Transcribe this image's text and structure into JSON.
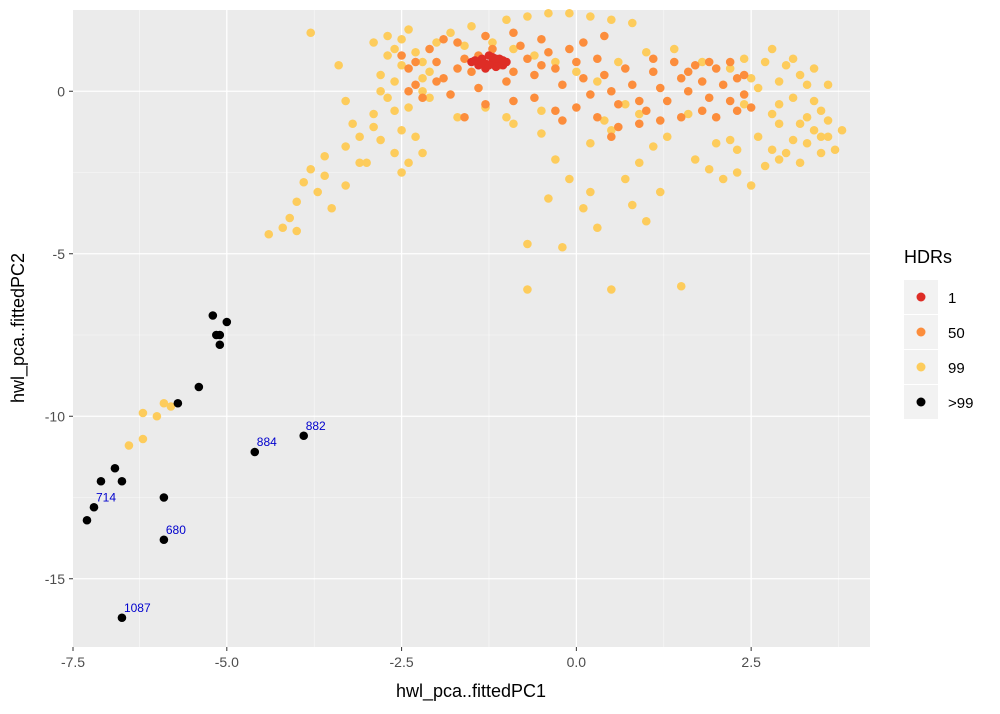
{
  "chart_data": {
    "type": "scatter",
    "title": "",
    "xlabel": "hwl_pca..fittedPC1",
    "ylabel": "hwl_pca..fittedPC2",
    "xlim": [
      -7.2,
      4.2
    ],
    "ylim": [
      -17.1,
      2.5
    ],
    "xticks": [
      -7.5,
      -5.0,
      -2.5,
      0.0,
      2.5
    ],
    "xtick_labels": [
      "-7.5",
      "-5.0",
      "-2.5",
      "0.0",
      "2.5"
    ],
    "yticks": [
      0,
      -5,
      -10,
      -15
    ],
    "ytick_labels": [
      "0",
      "-5",
      "-10",
      "-15"
    ],
    "grid": true,
    "legend": {
      "title": "HDRs",
      "position": "right",
      "entries": [
        {
          "label": "1",
          "color": "#de2d26"
        },
        {
          "label": "50",
          "color": "#fc8d3c"
        },
        {
          "label": "99",
          "color": "#fdcc5c"
        },
        {
          "label": ">99",
          "color": "#000000"
        }
      ]
    },
    "series": [
      {
        "name": "99",
        "color": "#fdcc5c",
        "points": [
          [
            -3.8,
            1.8
          ],
          [
            -3.4,
            0.8
          ],
          [
            -3.3,
            -0.3
          ],
          [
            -3.2,
            -1.0
          ],
          [
            -3.1,
            -1.4
          ],
          [
            -3.3,
            -1.7
          ],
          [
            -3.6,
            -2.0
          ],
          [
            -3.8,
            -2.4
          ],
          [
            -3.9,
            -2.8
          ],
          [
            -4.0,
            -3.4
          ],
          [
            -4.1,
            -3.9
          ],
          [
            -4.2,
            -4.2
          ],
          [
            -4.4,
            -4.4
          ],
          [
            -4.0,
            -4.3
          ],
          [
            -3.5,
            -3.6
          ],
          [
            -3.0,
            -2.2
          ],
          [
            -2.6,
            -1.9
          ],
          [
            -2.8,
            -1.5
          ],
          [
            -2.9,
            -0.7
          ],
          [
            -2.7,
            -0.2
          ],
          [
            -2.6,
            0.3
          ],
          [
            -2.5,
            0.8
          ],
          [
            -2.7,
            1.1
          ],
          [
            -2.8,
            0.5
          ],
          [
            -2.4,
            -0.5
          ],
          [
            -2.3,
            -1.4
          ],
          [
            -2.2,
            -1.9
          ],
          [
            -2.5,
            -2.5
          ],
          [
            -3.3,
            -2.9
          ],
          [
            -3.6,
            -2.6
          ],
          [
            -2.9,
            1.5
          ],
          [
            -2.7,
            1.7
          ],
          [
            -2.6,
            1.3
          ],
          [
            -2.5,
            1.6
          ],
          [
            -2.4,
            1.9
          ],
          [
            -2.3,
            1.2
          ],
          [
            -2.2,
            0.9
          ],
          [
            -2.2,
            0.4
          ],
          [
            -2.1,
            -0.2
          ],
          [
            -1.8,
            1.8
          ],
          [
            -1.5,
            2.0
          ],
          [
            -1.0,
            2.2
          ],
          [
            -0.7,
            2.3
          ],
          [
            -0.4,
            2.4
          ],
          [
            -0.1,
            2.4
          ],
          [
            0.2,
            2.3
          ],
          [
            0.5,
            2.2
          ],
          [
            0.8,
            2.1
          ],
          [
            -0.5,
            -1.3
          ],
          [
            -0.3,
            -2.1
          ],
          [
            -0.1,
            -2.7
          ],
          [
            0.1,
            -3.6
          ],
          [
            0.3,
            -4.2
          ],
          [
            -0.2,
            -4.8
          ],
          [
            -0.7,
            -4.7
          ],
          [
            -0.7,
            -6.1
          ],
          [
            0.5,
            -6.1
          ],
          [
            1.5,
            -6.0
          ],
          [
            0.9,
            -2.2
          ],
          [
            1.2,
            -3.1
          ],
          [
            0.8,
            -3.5
          ],
          [
            1.0,
            -4.0
          ],
          [
            0.2,
            -1.6
          ],
          [
            0.5,
            -1.2
          ],
          [
            1.3,
            -1.4
          ],
          [
            1.7,
            -2.1
          ],
          [
            1.9,
            -2.4
          ],
          [
            2.1,
            -2.7
          ],
          [
            2.3,
            -2.5
          ],
          [
            2.5,
            -2.9
          ],
          [
            2.7,
            -2.3
          ],
          [
            2.6,
            -1.4
          ],
          [
            2.8,
            -0.7
          ],
          [
            2.9,
            0.3
          ],
          [
            3.0,
            0.8
          ],
          [
            3.1,
            -0.2
          ],
          [
            3.2,
            -1.0
          ],
          [
            3.3,
            -1.6
          ],
          [
            3.4,
            -1.2
          ],
          [
            3.5,
            -0.6
          ],
          [
            3.6,
            -1.4
          ],
          [
            3.7,
            -1.8
          ],
          [
            3.3,
            0.2
          ],
          [
            3.0,
            -1.9
          ],
          [
            2.8,
            -1.8
          ],
          [
            2.9,
            -1.0
          ],
          [
            3.1,
            -1.5
          ],
          [
            3.4,
            -0.3
          ],
          [
            3.2,
            0.5
          ],
          [
            2.7,
            0.9
          ],
          [
            2.5,
            0.4
          ],
          [
            2.4,
            -0.4
          ],
          [
            2.2,
            -1.5
          ],
          [
            3.5,
            -1.9
          ],
          [
            3.6,
            -0.9
          ],
          [
            2.6,
            0.1
          ],
          [
            -6.2,
            -9.9
          ],
          [
            -6.0,
            -10.0
          ],
          [
            -6.2,
            -10.7
          ],
          [
            -6.4,
            -10.9
          ],
          [
            -5.8,
            -9.7
          ],
          [
            -5.9,
            -9.6
          ],
          [
            -1.2,
            1.5
          ],
          [
            -0.9,
            1.3
          ],
          [
            -0.6,
            1.1
          ],
          [
            -0.3,
            0.9
          ],
          [
            0.0,
            0.6
          ],
          [
            0.3,
            0.3
          ],
          [
            -2.0,
            1.5
          ],
          [
            -1.6,
            1.4
          ],
          [
            -1.3,
            -0.5
          ],
          [
            -1.0,
            -0.8
          ],
          [
            0.6,
            0.9
          ],
          [
            1.0,
            1.2
          ],
          [
            1.4,
            1.3
          ],
          [
            1.8,
            0.9
          ],
          [
            2.2,
            0.7
          ],
          [
            2.4,
            1.0
          ],
          [
            0.7,
            -0.4
          ],
          [
            0.9,
            -0.7
          ],
          [
            -1.7,
            -0.8
          ],
          [
            -0.9,
            -1.0
          ],
          [
            -0.5,
            -0.6
          ],
          [
            0.4,
            -0.9
          ],
          [
            1.6,
            -0.7
          ],
          [
            1.1,
            -1.7
          ],
          [
            -3.1,
            -2.2
          ],
          [
            -3.7,
            -3.1
          ],
          [
            -2.4,
            -2.2
          ],
          [
            -0.4,
            -3.3
          ],
          [
            0.7,
            -2.7
          ],
          [
            0.2,
            -3.1
          ],
          [
            2.0,
            -1.6
          ],
          [
            2.3,
            -1.8
          ],
          [
            2.9,
            -2.1
          ],
          [
            3.2,
            -2.2
          ],
          [
            3.5,
            -1.4
          ],
          [
            3.8,
            -1.2
          ],
          [
            3.6,
            0.2
          ],
          [
            3.4,
            0.7
          ],
          [
            3.1,
            1.0
          ],
          [
            2.8,
            1.3
          ],
          [
            2.9,
            -0.4
          ],
          [
            3.3,
            -0.8
          ],
          [
            -2.8,
            0.0
          ],
          [
            -2.6,
            -0.6
          ],
          [
            -2.9,
            -1.1
          ],
          [
            -2.5,
            -1.2
          ],
          [
            -2.2,
            0.0
          ],
          [
            -2.1,
            0.6
          ]
        ]
      },
      {
        "name": "50",
        "color": "#fc8d3c",
        "points": [
          [
            -2.5,
            1.1
          ],
          [
            -2.4,
            0.7
          ],
          [
            -2.3,
            0.2
          ],
          [
            -2.2,
            -0.2
          ],
          [
            -2.1,
            1.3
          ],
          [
            -2.0,
            0.9
          ],
          [
            -1.9,
            0.4
          ],
          [
            -1.8,
            -0.1
          ],
          [
            -1.7,
            1.5
          ],
          [
            -1.6,
            1.0
          ],
          [
            -1.5,
            0.6
          ],
          [
            -1.4,
            0.1
          ],
          [
            -1.3,
            1.7
          ],
          [
            -1.2,
            1.3
          ],
          [
            -1.1,
            0.8
          ],
          [
            -1.0,
            0.3
          ],
          [
            -0.9,
            1.8
          ],
          [
            -0.8,
            1.4
          ],
          [
            -0.7,
            1.0
          ],
          [
            -0.6,
            0.5
          ],
          [
            -0.5,
            1.6
          ],
          [
            -0.4,
            1.2
          ],
          [
            -0.3,
            0.7
          ],
          [
            -0.2,
            0.2
          ],
          [
            -0.1,
            1.3
          ],
          [
            0.0,
            0.9
          ],
          [
            0.1,
            0.4
          ],
          [
            0.2,
            -0.1
          ],
          [
            0.3,
            1.0
          ],
          [
            0.4,
            0.5
          ],
          [
            0.5,
            0.0
          ],
          [
            0.6,
            -0.4
          ],
          [
            0.7,
            0.7
          ],
          [
            0.8,
            0.2
          ],
          [
            0.9,
            -0.3
          ],
          [
            1.0,
            -0.6
          ],
          [
            1.1,
            0.6
          ],
          [
            1.2,
            0.1
          ],
          [
            1.3,
            -0.3
          ],
          [
            1.4,
            0.9
          ],
          [
            1.5,
            0.4
          ],
          [
            1.6,
            0.0
          ],
          [
            1.7,
            0.8
          ],
          [
            1.8,
            0.3
          ],
          [
            1.9,
            -0.2
          ],
          [
            2.0,
            0.7
          ],
          [
            2.1,
            0.2
          ],
          [
            2.2,
            -0.3
          ],
          [
            2.3,
            0.4
          ],
          [
            2.4,
            -0.1
          ],
          [
            2.5,
            -0.5
          ],
          [
            2.0,
            -0.8
          ],
          [
            1.8,
            -0.6
          ],
          [
            1.5,
            -0.8
          ],
          [
            -1.6,
            -0.8
          ],
          [
            -1.3,
            -0.4
          ],
          [
            -0.9,
            -0.3
          ],
          [
            -0.6,
            -0.2
          ],
          [
            -0.3,
            -0.6
          ],
          [
            0.0,
            -0.5
          ],
          [
            0.3,
            -0.8
          ],
          [
            0.6,
            -1.1
          ],
          [
            0.9,
            -1.0
          ],
          [
            1.2,
            -0.9
          ],
          [
            -2.3,
            0.9
          ],
          [
            -2.0,
            0.3
          ],
          [
            -1.7,
            0.7
          ],
          [
            -1.4,
            1.1
          ],
          [
            -0.9,
            0.6
          ],
          [
            -0.5,
            0.8
          ],
          [
            0.1,
            1.5
          ],
          [
            0.4,
            1.7
          ],
          [
            1.1,
            1.0
          ],
          [
            1.6,
            0.6
          ],
          [
            2.2,
            0.9
          ],
          [
            2.4,
            0.5
          ],
          [
            -2.4,
            0.0
          ],
          [
            -1.9,
            1.6
          ],
          [
            -0.2,
            -0.9
          ],
          [
            0.5,
            -1.4
          ],
          [
            1.9,
            0.9
          ],
          [
            2.3,
            -0.6
          ]
        ]
      },
      {
        "name": "1",
        "color": "#de2d26",
        "points": [
          [
            -1.5,
            0.9
          ],
          [
            -1.4,
            0.8
          ],
          [
            -1.35,
            1.0
          ],
          [
            -1.3,
            0.85
          ],
          [
            -1.25,
            1.1
          ],
          [
            -1.2,
            0.9
          ],
          [
            -1.15,
            0.75
          ],
          [
            -1.1,
            1.0
          ],
          [
            -1.05,
            0.8
          ],
          [
            -1.0,
            0.9
          ],
          [
            -1.3,
            0.7
          ],
          [
            -1.2,
            1.05
          ],
          [
            -1.45,
            0.95
          ],
          [
            -1.1,
            0.85
          ],
          [
            -1.25,
            0.8
          ],
          [
            -1.35,
            0.9
          ],
          [
            -1.15,
            1.0
          ],
          [
            -1.05,
            0.95
          ]
        ]
      },
      {
        "name": ">99",
        "color": "#000000",
        "points": [
          [
            -5.2,
            -6.9
          ],
          [
            -5.0,
            -7.1
          ],
          [
            -5.1,
            -7.5
          ],
          [
            -5.15,
            -7.5
          ],
          [
            -5.1,
            -7.8
          ],
          [
            -5.4,
            -9.1
          ],
          [
            -5.7,
            -9.6
          ],
          [
            -6.6,
            -11.6
          ],
          [
            -6.8,
            -12.0
          ],
          [
            -6.5,
            -12.0
          ],
          [
            -5.9,
            -12.5
          ],
          [
            -6.9,
            -12.8
          ],
          [
            -7.0,
            -13.2
          ],
          [
            -5.9,
            -13.8
          ],
          [
            -6.5,
            -16.2
          ],
          [
            -4.6,
            -11.1
          ],
          [
            -3.9,
            -10.6
          ]
        ]
      }
    ],
    "annotations": [
      {
        "text": "882",
        "x": -3.9,
        "y": -10.6,
        "color": "#0000cd"
      },
      {
        "text": "884",
        "x": -4.6,
        "y": -11.1,
        "color": "#0000cd"
      },
      {
        "text": "714",
        "x": -6.9,
        "y": -12.8,
        "color": "#0000cd"
      },
      {
        "text": "680",
        "x": -5.9,
        "y": -13.8,
        "color": "#0000cd"
      },
      {
        "text": "1087",
        "x": -6.5,
        "y": -16.2,
        "color": "#0000cd"
      }
    ]
  },
  "colors": {
    "panel_background": "#ebebeb",
    "grid_major": "#ffffff",
    "tick_label": "#4d4d4d"
  }
}
